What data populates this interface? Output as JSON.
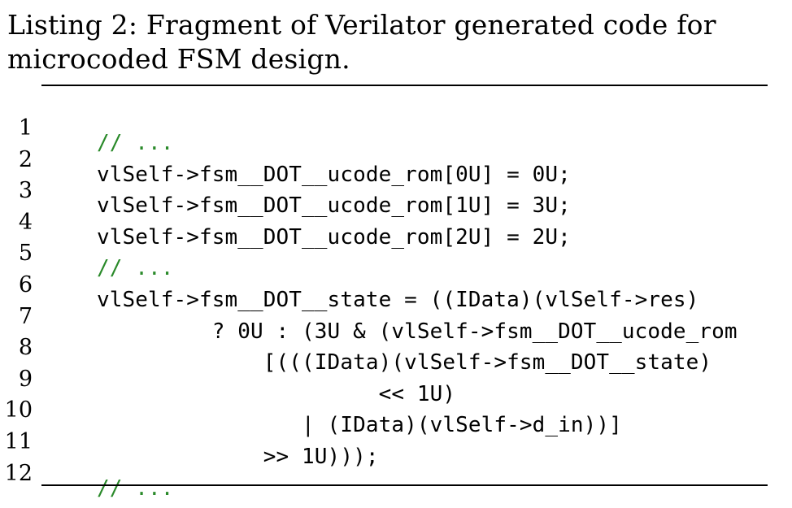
{
  "caption": "Listing 2: Fragment of Verilator generated code for microcoded FSM design.",
  "comment_color": "#2a8a2a",
  "listing": {
    "lines": [
      {
        "number": "1",
        "text": "// ...",
        "comment": true
      },
      {
        "number": "2",
        "text": "vlSelf->fsm__DOT__ucode_rom[0U] = 0U;",
        "comment": false
      },
      {
        "number": "3",
        "text": "vlSelf->fsm__DOT__ucode_rom[1U] = 3U;",
        "comment": false
      },
      {
        "number": "4",
        "text": "vlSelf->fsm__DOT__ucode_rom[2U] = 2U;",
        "comment": false
      },
      {
        "number": "5",
        "text": "// ...",
        "comment": true
      },
      {
        "number": "6",
        "text": "vlSelf->fsm__DOT__state = ((IData)(vlSelf->res)",
        "comment": false
      },
      {
        "number": "7",
        "text": "         ? 0U : (3U & (vlSelf->fsm__DOT__ucode_rom",
        "comment": false
      },
      {
        "number": "8",
        "text": "             [(((IData)(vlSelf->fsm__DOT__state)",
        "comment": false
      },
      {
        "number": "9",
        "text": "                      << 1U)",
        "comment": false
      },
      {
        "number": "10",
        "text": "                | (IData)(vlSelf->d_in))]",
        "comment": false
      },
      {
        "number": "11",
        "text": "             >> 1U)));",
        "comment": false
      },
      {
        "number": "12",
        "text": "// ...",
        "comment": true
      }
    ]
  }
}
